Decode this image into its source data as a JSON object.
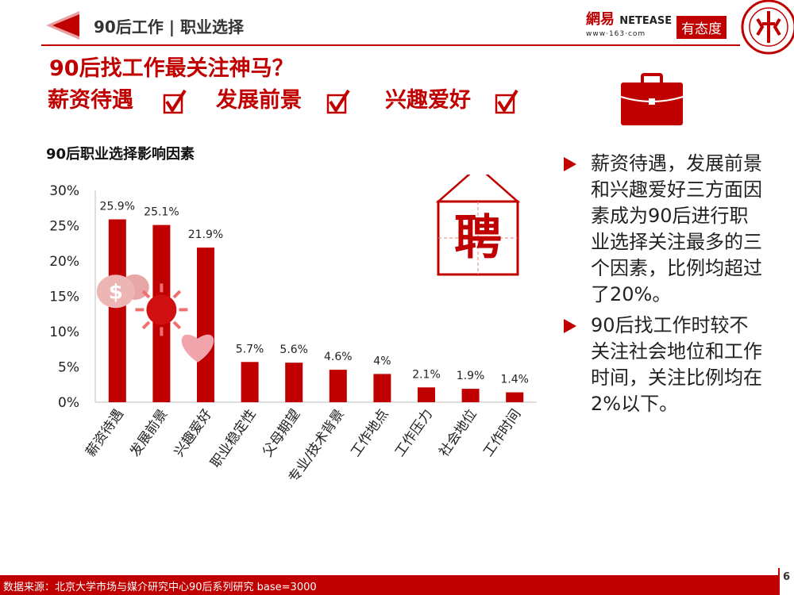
{
  "header": {
    "title": "90后工作 | 职业选择"
  },
  "brand": {
    "name_cn": "網易",
    "name_en": "NETEASE",
    "url": "www·163·com",
    "slogan": "有态度"
  },
  "headline": {
    "question": "90后找工作最关注神马？",
    "keywords": [
      "薪资待遇",
      "发展前景",
      "兴趣爱好"
    ],
    "check_glyph": "√"
  },
  "chart_data": {
    "type": "bar",
    "title": "90后职业选择影响因素",
    "categories": [
      "薪资待遇",
      "发展前景",
      "兴趣爱好",
      "职业稳定性",
      "父母期望",
      "专业/技术背景",
      "工作地点",
      "工作压力",
      "社会地位",
      "工作时间"
    ],
    "values": [
      25.9,
      25.1,
      21.9,
      5.7,
      5.6,
      4.6,
      4,
      2.1,
      1.9,
      1.4
    ],
    "value_labels": [
      "25.9%",
      "25.1%",
      "21.9%",
      "5.7%",
      "5.6%",
      "4.6%",
      "4%",
      "2.1%",
      "1.9%",
      "1.4%"
    ],
    "yticks": [
      "0%",
      "5%",
      "10%",
      "15%",
      "20%",
      "25%",
      "30%"
    ],
    "ylim": [
      0,
      30
    ],
    "xlabel": "",
    "ylabel": "",
    "bar_color": "#c00000",
    "sign_char": "聘"
  },
  "bullets": [
    "薪资待遇，发展前景和兴趣爱好三方面因素成为90后进行职业选择关注最多的三个因素，比例均超过了20%。",
    "90后找工作时较不关注社会地位和工作时间，关注比例均在2%以下。"
  ],
  "footer": {
    "source": "数据来源：北京大学市场与媒介研究中心90后系列研究 base=3000",
    "page": "6"
  },
  "colors": {
    "accent": "#c00000"
  }
}
